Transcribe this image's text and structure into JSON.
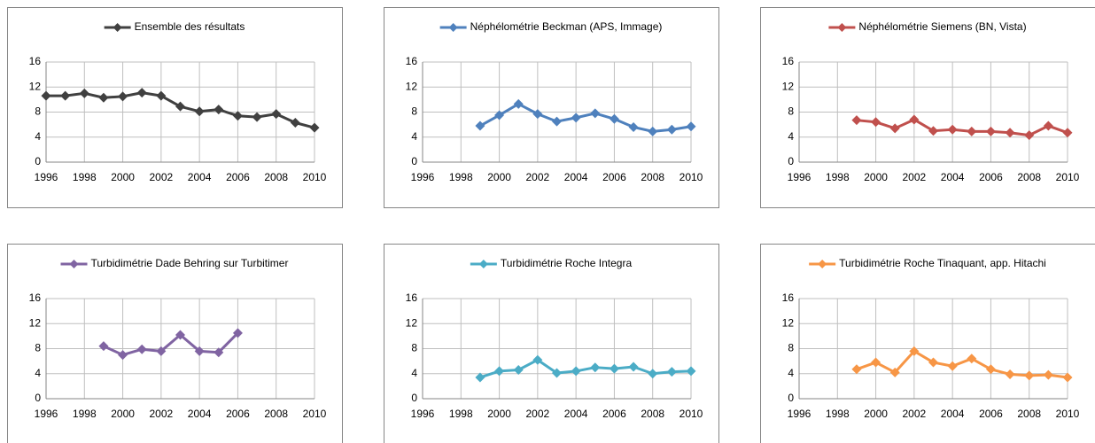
{
  "chart_data": [
    {
      "type": "line",
      "x": [
        1996,
        1997,
        1998,
        1999,
        2000,
        2001,
        2002,
        2003,
        2004,
        2005,
        2006,
        2007,
        2008,
        2009,
        2010
      ],
      "series": [
        {
          "name": "Ensemble des résultats",
          "color": "#404040",
          "values": [
            10.6,
            10.6,
            11.0,
            10.3,
            10.5,
            11.1,
            10.6,
            8.9,
            8.1,
            8.4,
            7.4,
            7.2,
            7.7,
            6.3,
            5.5
          ]
        }
      ],
      "xlim": [
        1996,
        2010
      ],
      "xticks": [
        1996,
        1998,
        2000,
        2002,
        2004,
        2006,
        2008,
        2010
      ],
      "ylim": [
        0,
        16
      ],
      "yticks": [
        0,
        4,
        8,
        12,
        16
      ],
      "grid": true,
      "legend": "top"
    },
    {
      "type": "line",
      "x": [
        1999,
        2000,
        2001,
        2002,
        2003,
        2004,
        2005,
        2006,
        2007,
        2008,
        2009,
        2010
      ],
      "series": [
        {
          "name": "Néphélométrie Beckman (APS, Immage)",
          "color": "#4f81bd",
          "values": [
            5.8,
            7.5,
            9.3,
            7.7,
            6.5,
            7.1,
            7.8,
            6.9,
            5.6,
            4.9,
            5.2,
            5.7
          ]
        }
      ],
      "xlim": [
        1996,
        2010
      ],
      "xticks": [
        1996,
        1998,
        2000,
        2002,
        2004,
        2006,
        2008,
        2010
      ],
      "ylim": [
        0,
        16
      ],
      "yticks": [
        0,
        4,
        8,
        12,
        16
      ],
      "grid": true,
      "legend": "top"
    },
    {
      "type": "line",
      "x": [
        1999,
        2000,
        2001,
        2002,
        2003,
        2004,
        2005,
        2006,
        2007,
        2008,
        2009,
        2010
      ],
      "series": [
        {
          "name": "Néphélométrie Siemens (BN, Vista)",
          "color": "#c0504d",
          "values": [
            6.7,
            6.4,
            5.4,
            6.8,
            5.0,
            5.2,
            4.9,
            4.9,
            4.7,
            4.3,
            5.8,
            4.7
          ]
        }
      ],
      "xlim": [
        1996,
        2010
      ],
      "xticks": [
        1996,
        1998,
        2000,
        2002,
        2004,
        2006,
        2008,
        2010
      ],
      "ylim": [
        0,
        16
      ],
      "yticks": [
        0,
        4,
        8,
        12,
        16
      ],
      "grid": true,
      "legend": "top"
    },
    {
      "type": "line",
      "x": [
        1999,
        2000,
        2001,
        2002,
        2003,
        2004,
        2005,
        2006
      ],
      "series": [
        {
          "name": "Turbidimétrie Dade Behring sur Turbitimer",
          "color": "#8064a2",
          "values": [
            8.4,
            7.0,
            7.9,
            7.6,
            10.2,
            7.6,
            7.4,
            10.5
          ]
        }
      ],
      "xlim": [
        1996,
        2010
      ],
      "xticks": [
        1996,
        1998,
        2000,
        2002,
        2004,
        2006,
        2008,
        2010
      ],
      "ylim": [
        0,
        16
      ],
      "yticks": [
        0,
        4,
        8,
        12,
        16
      ],
      "grid": true,
      "legend": "top"
    },
    {
      "type": "line",
      "x": [
        1999,
        2000,
        2001,
        2002,
        2003,
        2004,
        2005,
        2006,
        2007,
        2008,
        2009,
        2010
      ],
      "series": [
        {
          "name": "Turbidimétrie Roche Integra",
          "color": "#4bacc6",
          "values": [
            3.4,
            4.4,
            4.6,
            6.2,
            4.1,
            4.4,
            5.0,
            4.8,
            5.1,
            4.0,
            4.3,
            4.4
          ]
        }
      ],
      "xlim": [
        1996,
        2010
      ],
      "xticks": [
        1996,
        1998,
        2000,
        2002,
        2004,
        2006,
        2008,
        2010
      ],
      "ylim": [
        0,
        16
      ],
      "yticks": [
        0,
        4,
        8,
        12,
        16
      ],
      "grid": true,
      "legend": "top"
    },
    {
      "type": "line",
      "x": [
        1999,
        2000,
        2001,
        2002,
        2003,
        2004,
        2005,
        2006,
        2007,
        2008,
        2009,
        2010
      ],
      "series": [
        {
          "name": "Turbidimétrie Roche Tinaquant, app. Hitachi",
          "color": "#f79646",
          "values": [
            4.7,
            5.8,
            4.2,
            7.6,
            5.8,
            5.2,
            6.4,
            4.7,
            3.9,
            3.7,
            3.8,
            3.4
          ]
        }
      ],
      "xlim": [
        1996,
        2010
      ],
      "xticks": [
        1996,
        1998,
        2000,
        2002,
        2004,
        2006,
        2008,
        2010
      ],
      "ylim": [
        0,
        16
      ],
      "yticks": [
        0,
        4,
        8,
        12,
        16
      ],
      "grid": true,
      "legend": "top"
    }
  ]
}
